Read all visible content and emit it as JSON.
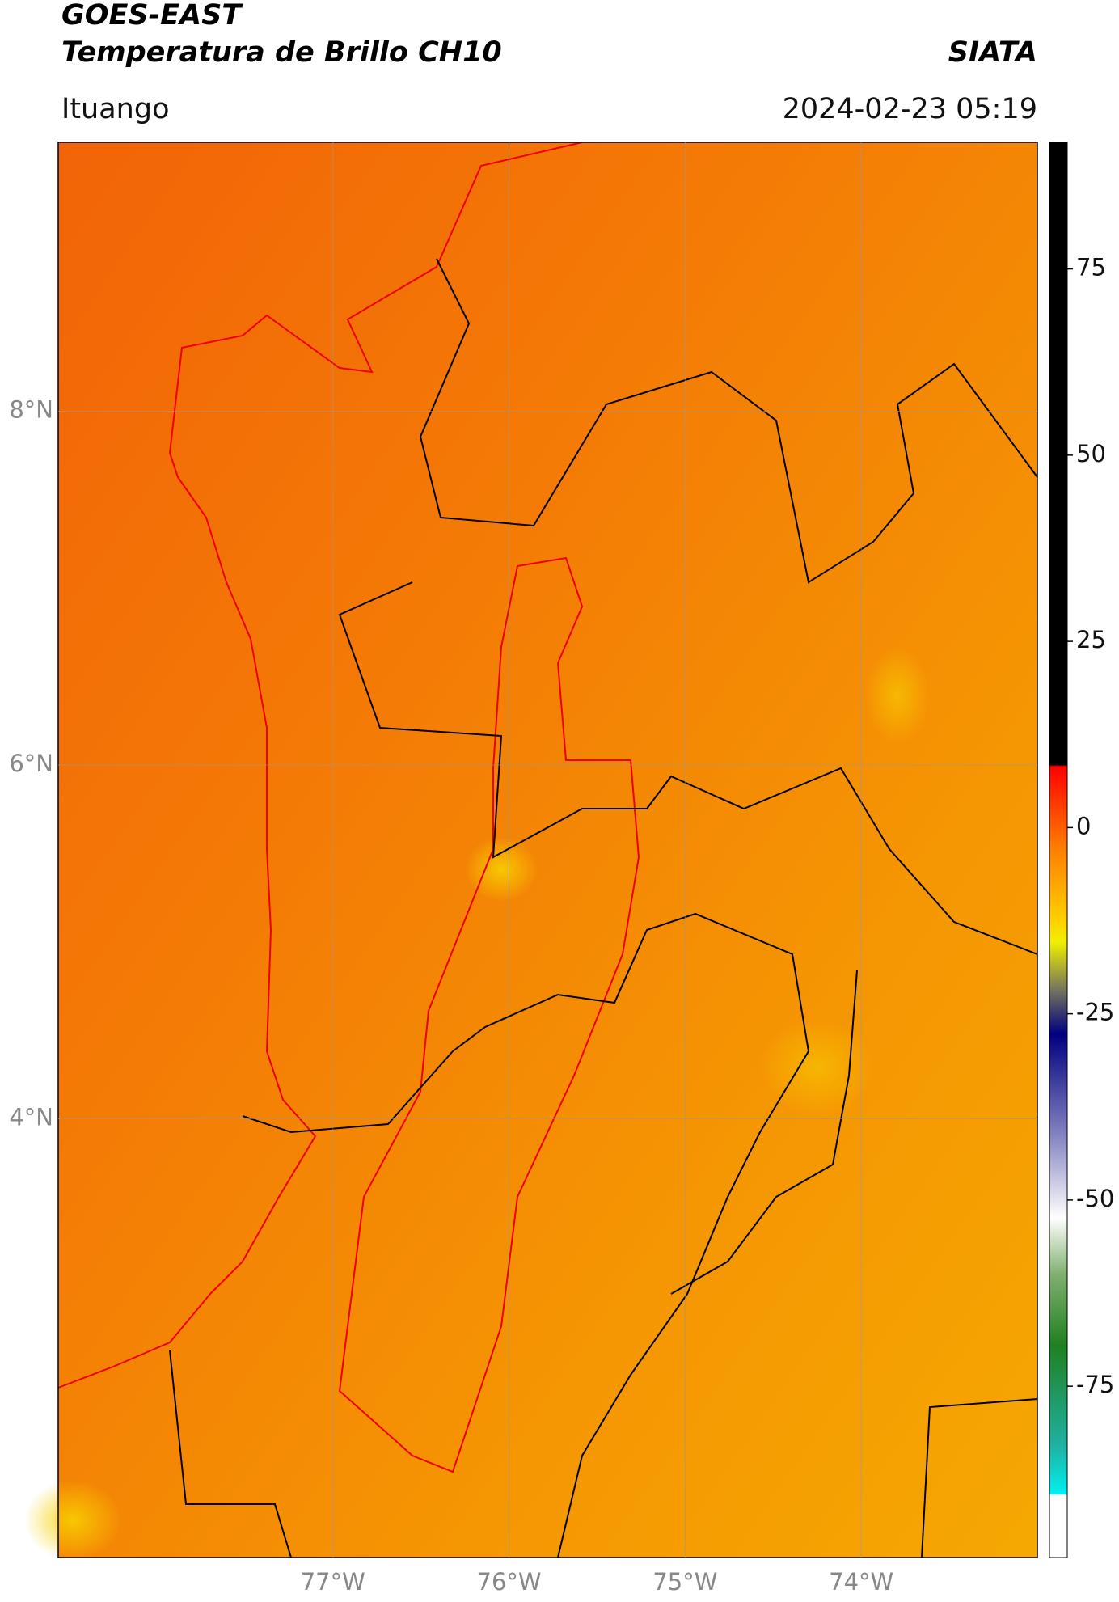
{
  "header": {
    "title": "GOES-EAST",
    "subtitle": "Temperatura de Brillo CH10",
    "brand": "SIATA",
    "region": "Ituango",
    "timestamp": "2024-02-23 05:19"
  },
  "map": {
    "xlim": [
      -78.56,
      -73.0
    ],
    "ylim": [
      1.52,
      9.52
    ],
    "xticks": [
      {
        "value": -77,
        "label": "77°W"
      },
      {
        "value": -76,
        "label": "76°W"
      },
      {
        "value": -75,
        "label": "75°W"
      },
      {
        "value": -74,
        "label": "74°W"
      }
    ],
    "yticks": [
      {
        "value": 8,
        "label": "8°N"
      },
      {
        "value": 6,
        "label": "6°N"
      },
      {
        "value": 4,
        "label": "4°N"
      }
    ],
    "grid": true
  },
  "colorbar": {
    "clim": [
      -98,
      92
    ],
    "ticks": [
      75,
      50,
      25,
      0,
      -25,
      -50,
      -75
    ]
  }
}
